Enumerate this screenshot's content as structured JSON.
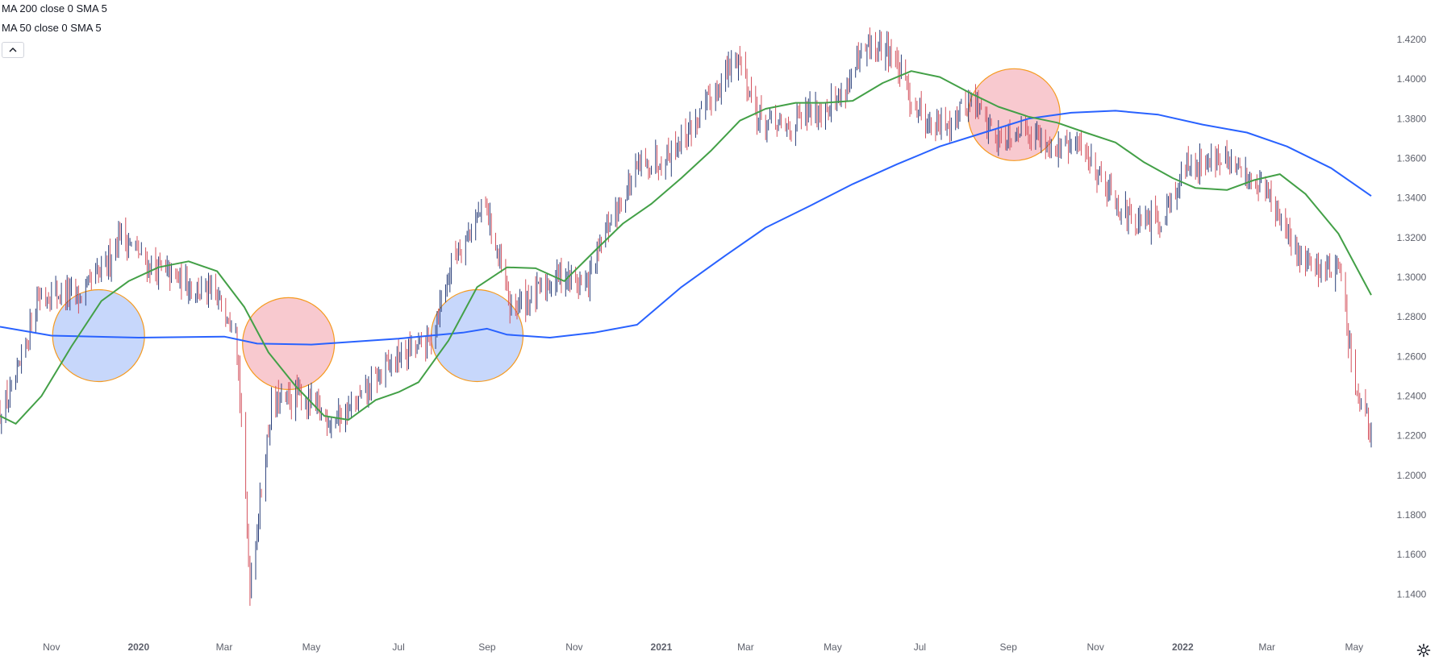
{
  "legend": {
    "ma200": "MA 200 close 0 SMA 5",
    "ma50": "MA 50 close 0 SMA 5",
    "collapse_icon": "chevron-up-icon"
  },
  "colors": {
    "background": "#ffffff",
    "bar_up": "#2a3f7a",
    "bar_down": "#d4525e",
    "ma200": "#2962ff",
    "ma50": "#43a047",
    "circle_bull_fill": "#c7d7fb",
    "circle_bear_fill": "#f8c9cf",
    "circle_stroke": "#f59a1f",
    "axis_text": "#5d606b"
  },
  "chart_data": {
    "type": "ohlc",
    "grid": false,
    "y_axis_position": "right",
    "ylim": [
      1.13,
      1.4285
    ],
    "y_ticks": [
      "1.4200",
      "1.4000",
      "1.3800",
      "1.3600",
      "1.3400",
      "1.3200",
      "1.3000",
      "1.2800",
      "1.2600",
      "1.2400",
      "1.2200",
      "1.2000",
      "1.1800",
      "1.1600",
      "1.1400"
    ],
    "x_ticks": [
      "Nov",
      "2020",
      "Mar",
      "May",
      "Jul",
      "Sep",
      "Nov",
      "2021",
      "Mar",
      "May",
      "Jul",
      "Sep",
      "Nov",
      "2022",
      "Mar",
      "May"
    ],
    "x_tick_dates": [
      "2019-11-01",
      "2020-01-01",
      "2020-03-01",
      "2020-05-01",
      "2020-07-01",
      "2020-09-01",
      "2020-11-01",
      "2021-01-01",
      "2021-03-01",
      "2021-05-01",
      "2021-07-01",
      "2021-09-01",
      "2021-11-01",
      "2022-01-01",
      "2022-03-01",
      "2022-05-01"
    ],
    "x_range": [
      "2019-09-26",
      "2022-05-13"
    ],
    "price_series": {
      "name": "",
      "dates": [
        "2019-09-26",
        "2019-10-07",
        "2019-10-22",
        "2019-11-06",
        "2019-11-21",
        "2019-12-09",
        "2019-12-19",
        "2020-01-08",
        "2020-01-23",
        "2020-02-07",
        "2020-02-22",
        "2020-03-09",
        "2020-03-19",
        "2020-04-03",
        "2020-04-23",
        "2020-05-15",
        "2020-06-01",
        "2020-06-21",
        "2020-07-06",
        "2020-07-23",
        "2020-08-09",
        "2020-08-31",
        "2020-09-17",
        "2020-10-05",
        "2020-10-22",
        "2020-11-10",
        "2020-11-26",
        "2020-12-16",
        "2021-01-05",
        "2021-01-25",
        "2021-02-24",
        "2021-03-10",
        "2021-03-29",
        "2021-04-18",
        "2021-05-05",
        "2021-05-25",
        "2021-06-10",
        "2021-06-25",
        "2021-07-11",
        "2021-07-23",
        "2021-08-07",
        "2021-08-24",
        "2021-09-13",
        "2021-10-03",
        "2021-10-22",
        "2021-11-10",
        "2021-11-29",
        "2021-12-17",
        "2022-01-03",
        "2022-01-21",
        "2022-02-08",
        "2022-02-28",
        "2022-03-18",
        "2022-04-06",
        "2022-04-21",
        "2022-05-02",
        "2022-05-13"
      ],
      "close": [
        1.231,
        1.245,
        1.29,
        1.292,
        1.29,
        1.305,
        1.323,
        1.306,
        1.301,
        1.296,
        1.29,
        1.28,
        1.145,
        1.235,
        1.24,
        1.228,
        1.235,
        1.254,
        1.262,
        1.268,
        1.312,
        1.336,
        1.285,
        1.291,
        1.302,
        1.296,
        1.328,
        1.355,
        1.362,
        1.378,
        1.412,
        1.38,
        1.375,
        1.384,
        1.39,
        1.415,
        1.415,
        1.39,
        1.375,
        1.38,
        1.39,
        1.37,
        1.376,
        1.365,
        1.366,
        1.345,
        1.325,
        1.33,
        1.355,
        1.36,
        1.355,
        1.345,
        1.315,
        1.305,
        1.305,
        1.24,
        1.22
      ]
    },
    "ma200": {
      "name": "MA 200",
      "dates": [
        "2019-09-26",
        "2019-11-01",
        "2020-01-01",
        "2020-03-01",
        "2020-03-24",
        "2020-05-01",
        "2020-07-01",
        "2020-08-15",
        "2020-09-01",
        "2020-09-15",
        "2020-10-15",
        "2020-11-15",
        "2020-12-15",
        "2021-01-15",
        "2021-02-15",
        "2021-03-15",
        "2021-04-15",
        "2021-05-15",
        "2021-06-15",
        "2021-07-15",
        "2021-08-15",
        "2021-09-15",
        "2021-10-15",
        "2021-11-15",
        "2021-12-15",
        "2022-01-15",
        "2022-02-15",
        "2022-03-15",
        "2022-04-15",
        "2022-05-13"
      ],
      "values": [
        1.275,
        1.2705,
        1.2695,
        1.27,
        1.2665,
        1.266,
        1.269,
        1.272,
        1.274,
        1.271,
        1.2695,
        1.272,
        1.276,
        1.295,
        1.311,
        1.325,
        1.336,
        1.347,
        1.357,
        1.366,
        1.373,
        1.38,
        1.383,
        1.384,
        1.382,
        1.377,
        1.373,
        1.366,
        1.355,
        1.341
      ]
    },
    "ma50": {
      "name": "MA 50",
      "dates": [
        "2019-09-26",
        "2019-10-07",
        "2019-10-25",
        "2019-11-15",
        "2019-12-06",
        "2019-12-25",
        "2020-01-15",
        "2020-02-05",
        "2020-02-25",
        "2020-03-15",
        "2020-04-01",
        "2020-04-20",
        "2020-05-10",
        "2020-05-27",
        "2020-06-15",
        "2020-07-01",
        "2020-07-15",
        "2020-08-05",
        "2020-08-25",
        "2020-09-15",
        "2020-10-05",
        "2020-10-25",
        "2020-11-15",
        "2020-12-05",
        "2020-12-25",
        "2021-01-15",
        "2021-02-05",
        "2021-02-25",
        "2021-03-15",
        "2021-04-05",
        "2021-04-25",
        "2021-05-15",
        "2021-06-05",
        "2021-06-25",
        "2021-07-15",
        "2021-08-05",
        "2021-08-25",
        "2021-09-15",
        "2021-10-05",
        "2021-10-25",
        "2021-11-15",
        "2021-12-05",
        "2021-12-25",
        "2022-01-10",
        "2022-02-01",
        "2022-02-20",
        "2022-03-10",
        "2022-03-28",
        "2022-04-20",
        "2022-05-13"
      ],
      "values": [
        1.23,
        1.226,
        1.24,
        1.265,
        1.288,
        1.298,
        1.305,
        1.308,
        1.303,
        1.285,
        1.262,
        1.245,
        1.23,
        1.228,
        1.238,
        1.242,
        1.247,
        1.268,
        1.295,
        1.305,
        1.3045,
        1.298,
        1.313,
        1.327,
        1.337,
        1.35,
        1.364,
        1.379,
        1.385,
        1.388,
        1.388,
        1.389,
        1.398,
        1.404,
        1.401,
        1.393,
        1.386,
        1.381,
        1.378,
        1.373,
        1.368,
        1.358,
        1.35,
        1.345,
        1.344,
        1.349,
        1.352,
        1.342,
        1.322,
        1.291
      ]
    },
    "annotations": [
      {
        "type": "circle",
        "kind": "bullish-cross",
        "date": "2019-12-04",
        "price": 1.2705
      },
      {
        "type": "circle",
        "kind": "bearish-cross",
        "date": "2020-04-15",
        "price": 1.2665
      },
      {
        "type": "circle",
        "kind": "bullish-cross",
        "date": "2020-08-25",
        "price": 1.2705
      },
      {
        "type": "circle",
        "kind": "bearish-cross",
        "date": "2021-09-05",
        "price": 1.382
      }
    ]
  },
  "settings_icon": "gear-icon"
}
